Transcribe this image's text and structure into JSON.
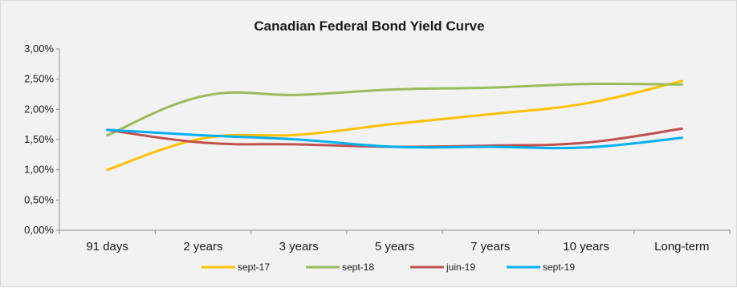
{
  "chart_data": {
    "type": "line",
    "title": "Canadian Federal Bond Yield Curve",
    "xlabel": "",
    "ylabel": "",
    "categories": [
      "91 days",
      "2 years",
      "3 years",
      "5 years",
      "7 years",
      "10 years",
      "Long-term"
    ],
    "ylim": [
      0,
      3
    ],
    "yticks": [
      0,
      0.5,
      1.0,
      1.5,
      2.0,
      2.5,
      3.0
    ],
    "ytick_labels": [
      "0,00%",
      "0,50%",
      "1,00%",
      "1,50%",
      "2,00%",
      "2,50%",
      "3,00%"
    ],
    "grid": false,
    "legend_position": "bottom",
    "series": [
      {
        "name": "sept-17",
        "color": "#ffc000",
        "values": [
          1.0,
          1.52,
          1.58,
          1.76,
          1.92,
          2.1,
          2.47
        ]
      },
      {
        "name": "sept-18",
        "color": "#9bbb59",
        "values": [
          1.57,
          2.22,
          2.24,
          2.33,
          2.36,
          2.42,
          2.41
        ]
      },
      {
        "name": "juin-19",
        "color": "#c0504d",
        "values": [
          1.66,
          1.45,
          1.42,
          1.38,
          1.4,
          1.45,
          1.68
        ]
      },
      {
        "name": "sept-19",
        "color": "#00b0f0",
        "values": [
          1.66,
          1.57,
          1.5,
          1.38,
          1.38,
          1.37,
          1.53
        ]
      }
    ]
  }
}
